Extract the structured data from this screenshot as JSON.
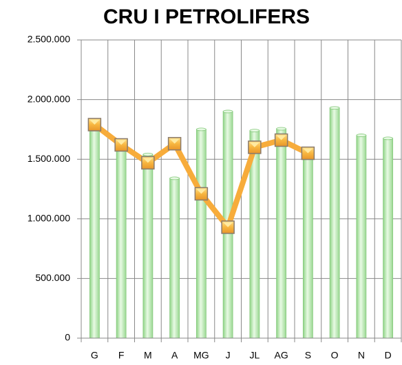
{
  "chart_data": {
    "type": "bar-line",
    "title": "CRU I PETROLIFERS",
    "categories": [
      "G",
      "F",
      "M",
      "A",
      "MG",
      "J",
      "JL",
      "AG",
      "S",
      "O",
      "N",
      "D"
    ],
    "series": [
      {
        "type": "bar",
        "color": "#b8eab0",
        "values": [
          1780000,
          1620000,
          1540000,
          1340000,
          1750000,
          1900000,
          1740000,
          1755000,
          1560000,
          1930000,
          1700000,
          1675000
        ]
      },
      {
        "type": "line",
        "color": "#f7ac3b",
        "values": [
          1790000,
          1620000,
          1470000,
          1630000,
          1210000,
          930000,
          1600000,
          1660000,
          1550000,
          null,
          null,
          null
        ]
      }
    ],
    "ylim": [
      0,
      2500000
    ],
    "yticks": [
      {
        "value": 0,
        "label": "0"
      },
      {
        "value": 500000,
        "label": "500.000"
      },
      {
        "value": 1000000,
        "label": "1.000.000"
      },
      {
        "value": 1500000,
        "label": "1.500.000"
      },
      {
        "value": 2000000,
        "label": "2.000.000"
      },
      {
        "value": 2500000,
        "label": "2.500.000"
      }
    ],
    "grid": true
  }
}
